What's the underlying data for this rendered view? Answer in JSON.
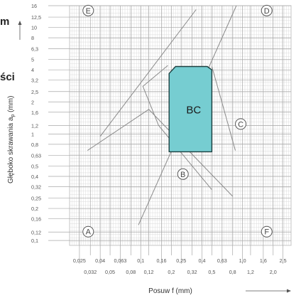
{
  "fragments": {
    "top": "m",
    "mid": "ści"
  },
  "chart_data": {
    "type": "area",
    "xlabel": "Posuw f (mm)",
    "ylabel": "Głęboko skrawania a",
    "ylabel_sub": "p",
    "ylabel_unit": " (mm)",
    "x_scale": "log",
    "y_scale": "log",
    "xlim": [
      0.02,
      3.0
    ],
    "ylim": [
      0.09,
      16
    ],
    "grid": true,
    "x_ticks_upper": [
      "0,025",
      "0,04",
      "0,063",
      "0,1",
      "0,16",
      "0,25",
      "0,4",
      "0,63",
      "1,0",
      "1,6",
      "2,5"
    ],
    "x_ticks_lower": [
      "0,032",
      "0,05",
      "0,08",
      "0,12",
      "0,2",
      "0,32",
      "0,5",
      "0,8",
      "1,2",
      "2,0"
    ],
    "y_ticks": [
      "0,1",
      "0,12",
      "0,16",
      "0,2",
      "0,25",
      "0,32",
      "0,4",
      "0,5",
      "0,63",
      "0,8",
      "1",
      "1,2",
      "1,6",
      "2",
      "2,5",
      "3,2",
      "4",
      "5",
      "6,3",
      "8",
      "10",
      "12,5",
      "16"
    ],
    "region": {
      "name": "BC",
      "color": "#76cdd1",
      "points": [
        [
          0.19,
          0.68
        ],
        [
          0.19,
          3.7
        ],
        [
          0.22,
          4.3
        ],
        [
          0.45,
          4.3
        ],
        [
          0.5,
          4.0
        ],
        [
          0.5,
          0.68
        ]
      ]
    },
    "boundary_lines": [
      {
        "points": [
          [
            0.04,
            0.95
          ],
          [
            0.35,
            14.7
          ]
        ]
      },
      {
        "points": [
          [
            0.095,
            0.14
          ],
          [
            0.87,
            16
          ]
        ]
      },
      {
        "points": [
          [
            0.03,
            0.7
          ],
          [
            0.12,
            1.7
          ],
          [
            0.8,
            0.26
          ]
        ]
      },
      {
        "points": [
          [
            0.185,
            4.4
          ],
          [
            0.105,
            2.8
          ],
          [
            0.15,
            1.2
          ],
          [
            0.5,
            0.3
          ]
        ]
      },
      {
        "points": [
          [
            0.5,
            4.3
          ],
          [
            0.58,
            2.6
          ],
          [
            0.85,
            0.7
          ]
        ]
      }
    ],
    "markers": [
      {
        "label": "A",
        "x": 0.0305,
        "y": 0.121
      },
      {
        "label": "B",
        "x": 0.26,
        "y": 0.42
      },
      {
        "label": "C",
        "x": 0.96,
        "y": 1.24
      },
      {
        "label": "D",
        "x": 1.73,
        "y": 14.4
      },
      {
        "label": "E",
        "x": 0.0305,
        "y": 14.4
      },
      {
        "label": "F",
        "x": 1.73,
        "y": 0.121
      }
    ]
  }
}
